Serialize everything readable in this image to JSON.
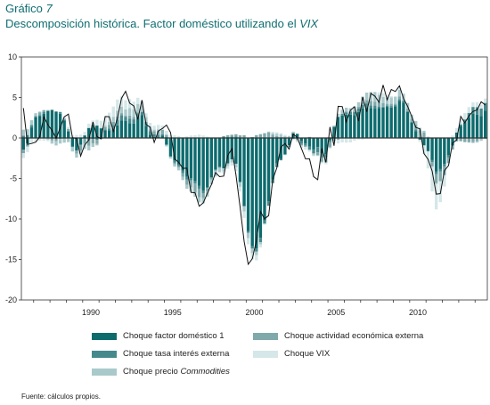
{
  "header": {
    "label": "Gráfico",
    "number": "7",
    "title": "Descomposición histórica. Factor doméstico utilizando el",
    "title_em": "VIX"
  },
  "source": "Fuente: cálculos propios.",
  "colors": {
    "domestico": "#0d6b6e",
    "actividad": "#7fa9ab",
    "tasa": "#46898d",
    "vix": "#d5e7e8",
    "commodities": "#a9c9cb",
    "line": "#111111"
  },
  "chart_data": {
    "type": "bar",
    "stacked": true,
    "x_start": 1986.25,
    "x_step": 0.25,
    "x_ticks": [
      1990,
      1995,
      2000,
      2005,
      2010
    ],
    "x_tick_labels": [
      "1990",
      "1995",
      "2000",
      "2005",
      "2010"
    ],
    "y_ticks": [
      10,
      5,
      0,
      -5,
      -10,
      -15,
      -20
    ],
    "ylim": [
      -20,
      10
    ],
    "grid": false,
    "legend_position": "bottom",
    "series_labels": {
      "domestico": "Choque factor doméstico 1",
      "actividad": "Choque actividad económica externa",
      "tasa": "Choque tasa interés externa",
      "vix": "Choque VIX",
      "commodities": "Choque precio",
      "commodities_em": "Commodities"
    },
    "series": {
      "domestico": [
        -1.45,
        -0.69,
        1.31,
        2.6,
        2.7,
        3.0,
        3.33,
        3.41,
        3.27,
        2.99,
        2.17,
        0.8,
        -1.07,
        -1.55,
        -0.83,
        0.32,
        1.24,
        1.59,
        1.53,
        1.18,
        0.96,
        0.96,
        0.99,
        1.55,
        2.14,
        2.09,
        1.84,
        1.79,
        2.5,
        2.8,
        1.51,
        0.38,
        0.13,
        0.11,
        0.31,
        -0.85,
        -2.29,
        -2.79,
        -3.24,
        -4.05,
        -4.81,
        -4.95,
        -5.35,
        -5.88,
        -6.48,
        -6.09,
        -4.88,
        -3.89,
        -3.59,
        -3.76,
        -3.14,
        -2.64,
        -3.18,
        -5.45,
        -8.43,
        -11.5,
        -13.36,
        -13.66,
        -12.33,
        -10.17,
        -7.84,
        -5.14,
        -3.17,
        -2.58,
        -2.01,
        -0.89,
        0.58,
        0.51,
        -0.42,
        -0.7,
        -1.04,
        -1.42,
        -1.12,
        -1.91,
        -2.02,
        -0.29,
        1.38,
        2.54,
        2.77,
        2.88,
        2.89,
        2.82,
        3.21,
        3.66,
        3.81,
        3.71,
        3.62,
        3.69,
        3.75,
        3.84,
        3.76,
        3.92,
        4.56,
        4.34,
        3.2,
        1.87,
        0.83,
        -0.21,
        -0.92,
        -1.61,
        -2.74,
        -4.12,
        -3.84,
        -3.22,
        -2.13,
        -0.89,
        0.66,
        1.51,
        1.87,
        2.51,
        3.01,
        2.89,
        2.73,
        3.35
      ],
      "actividad": [
        -0.43,
        -0.38,
        -0.05,
        0.18,
        0.37,
        0.25,
        0.06,
        -0.32,
        -0.41,
        -0.13,
        0.15,
        0.25,
        -0.04,
        -0.4,
        -0.71,
        -0.68,
        -0.67,
        -0.55,
        -0.51,
        -0.14,
        0.31,
        0.44,
        0.46,
        0.39,
        0.26,
        0.16,
        0.37,
        0.28,
        0.14,
        0.03,
        0.05,
        0.24,
        0.36,
        0.51,
        0.55,
        0.28,
        0.06,
        -0.2,
        -0.19,
        -0.44,
        -0.69,
        -0.89,
        -1.08,
        -1.07,
        -0.6,
        -0.41,
        -0.23,
        -0.11,
        -0.13,
        0.06,
        0.19,
        0.21,
        0.3,
        0.23,
        0.27,
        0.04,
        0.12,
        0.35,
        0.47,
        0.59,
        0.69,
        0.39,
        0.23,
        0.1,
        -0.04,
        -0.21,
        -0.11,
        -0.24,
        -0.18,
        -0.16,
        0.13,
        -0.09,
        -0.32,
        -0.49,
        -0.66,
        -0.65,
        -0.33,
        -0.21,
        0.01,
        0.11,
        -0.01,
        0.15,
        0.21,
        0.34,
        0.45,
        0.55,
        0.49,
        0.55,
        0.45,
        0.22,
        0.27,
        0.19,
        0.31,
        0.1,
        0.33,
        0.35,
        0.58,
        0.79,
        0.61,
        0.08,
        -0.53,
        -1.12,
        -1.2,
        -1.09,
        -0.68,
        -0.41,
        -0.39,
        -0.4,
        -0.51,
        -0.53,
        -0.53,
        -0.4,
        -0.15,
        0.05
      ],
      "tasa": [
        0.27,
        0.37,
        0.28,
        -0.03,
        0.1,
        0.19,
        0.05,
        0.08,
        0.0,
        0.21,
        0.07,
        0.08,
        -0.04,
        0.03,
        0.04,
        -0.05,
        -0.3,
        -0.11,
        -0.23,
        0.05,
        0.08,
        0.19,
        0.55,
        0.72,
        0.67,
        0.53,
        0.56,
        0.51,
        0.53,
        0.43,
        0.46,
        0.45,
        0.34,
        0.27,
        0.14,
        0.11,
        -0.04,
        -0.27,
        -0.23,
        -0.3,
        -0.3,
        -0.29,
        -0.29,
        -0.38,
        -0.33,
        -0.08,
        0.02,
        -0.06,
        0.06,
        0.16,
        0.14,
        0.19,
        0.16,
        0.09,
        0.07,
        -0.21,
        -0.3,
        -0.38,
        -0.54,
        -0.41,
        -0.54,
        -0.44,
        -0.43,
        -0.18,
        -0.06,
        0.05,
        0.04,
        -0.05,
        -0.32,
        -0.23,
        -0.42,
        -0.45,
        -0.65,
        -0.51,
        -0.34,
        -0.22,
        -0.05,
        0.1,
        0.19,
        0.29,
        0.35,
        0.39,
        0.44,
        0.41,
        0.42,
        0.32,
        0.38,
        0.2,
        0.12,
        0.16,
        0.19,
        0.14,
        0.24,
        0.22,
        0.11,
        0.14,
        0.23,
        0.15,
        0.08,
        -0.06,
        -0.23,
        -0.35,
        -0.29,
        -0.29,
        -0.28,
        -0.13,
        -0.03,
        0.16,
        0.41,
        0.59,
        0.82,
        0.92,
        0.91,
        0.94
      ],
      "vix": [
        -0.6,
        -0.67,
        -0.63,
        -0.45,
        -0.33,
        -0.3,
        -0.16,
        -0.08,
        0.02,
        0.13,
        0.26,
        0.24,
        0.32,
        0.34,
        0.37,
        0.43,
        0.52,
        0.57,
        0.72,
        0.87,
        1.05,
        1.13,
        1.26,
        1.37,
        1.29,
        1.13,
        1.11,
        0.95,
        0.76,
        0.64,
        0.45,
        0.44,
        0.48,
        0.54,
        0.53,
        0.48,
        0.3,
        0.34,
        0.25,
        0.07,
        0.2,
        0.3,
        0.33,
        0.41,
        0.31,
        0.17,
        0.02,
        -0.09,
        -0.15,
        -0.26,
        -0.32,
        -0.37,
        -0.43,
        -0.58,
        -0.78,
        -0.75,
        -0.75,
        -0.63,
        -0.37,
        -0.08,
        0.04,
        0.17,
        0.18,
        0.17,
        0.14,
        -0.04,
        -0.13,
        -0.24,
        -0.27,
        -0.31,
        -0.18,
        -0.09,
        -0.04,
        -0.13,
        -0.22,
        -0.18,
        -0.32,
        -0.46,
        -0.55,
        -0.58,
        -0.54,
        -0.34,
        -0.21,
        -0.21,
        -0.09,
        -0.04,
        0.03,
        0.31,
        0.44,
        0.33,
        0.14,
        0.06,
        0.19,
        0.1,
        0.06,
        0.01,
        -0.06,
        -0.28,
        -1.06,
        -2.09,
        -3.03,
        -3.14,
        -2.6,
        -1.4,
        -0.17,
        0.3,
        0.52,
        0.66,
        0.75,
        0.71,
        0.57,
        0.62,
        0.48,
        0.53
      ],
      "commodities": [
        0.76,
        0.71,
        0.6,
        0.28,
        0.09,
        -0.04,
        -0.24,
        -0.35,
        -0.52,
        -0.56,
        -0.58,
        -0.52,
        -0.52,
        -0.48,
        -0.43,
        -0.62,
        -0.57,
        -0.44,
        -0.18,
        0.02,
        0.18,
        0.4,
        0.62,
        0.71,
        0.78,
        0.75,
        0.92,
        0.95,
        1.04,
        0.76,
        0.57,
        0.36,
        0.2,
        0.19,
        -0.07,
        -0.19,
        -0.22,
        -0.28,
        -0.34,
        -0.41,
        -0.47,
        -0.49,
        -0.54,
        -0.63,
        -0.66,
        -0.66,
        -0.62,
        -0.65,
        -0.46,
        -0.37,
        -0.34,
        -0.4,
        -0.46,
        -0.58,
        -0.66,
        -0.67,
        -0.57,
        -0.44,
        -0.27,
        -0.05,
        0.09,
        0.2,
        0.3,
        0.33,
        0.25,
        0.2,
        0.16,
        0.0,
        -0.05,
        -0.02,
        -0.05,
        -0.21,
        -0.12,
        -0.1,
        0.05,
        0.09,
        0.15,
        0.35,
        0.52,
        0.46,
        0.44,
        0.52,
        0.55,
        0.7,
        0.92,
        1.1,
        1.18,
        0.89,
        0.76,
        0.74,
        0.8,
        0.84,
        0.83,
        0.77,
        0.66,
        0.53,
        0.46,
        0.32,
        0.2,
        0.07,
        -0.07,
        -0.09,
        0.02,
        0.05,
        0.06,
        0.0,
        0.04,
        0.03,
        0.04,
        -0.05,
        -0.1,
        -0.16,
        -0.21,
        -0.14
      ],
      "total": [
        3.69,
        -0.79,
        -0.68,
        -0.52,
        0.15,
        2.61,
        1.62,
        0.93,
        -0.04,
        1.25,
        2.62,
        2.94,
        0.03,
        -0.06,
        -2.24,
        -0.85,
        -0.26,
        1.97,
        0.18,
        -0.11,
        2.65,
        2.62,
        0.81,
        2.43,
        4.91,
        5.76,
        4.3,
        3.96,
        2.3,
        4.67,
        1.67,
        1.33,
        -0.55,
        0.86,
        1.17,
        1.59,
        0.67,
        -2.58,
        -3.02,
        -3.75,
        -3.72,
        -6.72,
        -6.77,
        -8.42,
        -8.02,
        -6.83,
        -5.75,
        -4.28,
        -4.78,
        -4.71,
        -2.16,
        -1.33,
        -4.57,
        -8.48,
        -12.77,
        -15.59,
        -14.91,
        -12.69,
        -9.09,
        -9.98,
        -9.58,
        -5.14,
        -3.68,
        -1.13,
        -0.69,
        -1.37,
        0.48,
        0.05,
        -1.27,
        -2.57,
        -2.58,
        -4.77,
        -5.15,
        -1.29,
        -3.02,
        1.36,
        -0.96,
        3.91,
        3.88,
        1.97,
        3.42,
        3.86,
        2.08,
        5.06,
        3.23,
        5.5,
        5.16,
        4.41,
        6.54,
        4.72,
        5.98,
        5.74,
        6.43,
        4.87,
        3.9,
        2.66,
        1.31,
        1.13,
        -1.93,
        -2.64,
        -4.09,
        -6.94,
        -6.87,
        -4.03,
        -3.41,
        -0.61,
        -0.26,
        2.67,
        1.86,
        2.74,
        3.28,
        3.46,
        4.47,
        4.07
      ]
    }
  }
}
